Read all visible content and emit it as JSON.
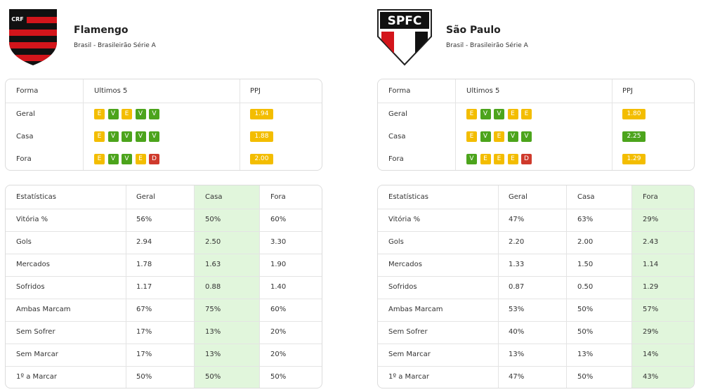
{
  "teams": [
    {
      "name": "Flamengo",
      "subtitle": "Brasil - Brasileirão Série A",
      "logo_text": "CRF",
      "form": {
        "headers": [
          "Forma",
          "Ultimos 5",
          "PPJ"
        ],
        "rows": [
          {
            "label": "Geral",
            "results": [
              "E",
              "V",
              "E",
              "V",
              "V"
            ],
            "ppj": "1.94",
            "ppj_color": "#f3bd00"
          },
          {
            "label": "Casa",
            "results": [
              "E",
              "V",
              "V",
              "V",
              "V"
            ],
            "ppj": "1.88",
            "ppj_color": "#f3bd00"
          },
          {
            "label": "Fora",
            "results": [
              "E",
              "V",
              "V",
              "E",
              "D"
            ],
            "ppj": "2.00",
            "ppj_color": "#f3bd00"
          }
        ]
      },
      "stats": {
        "headers": [
          "Estatísticas",
          "Geral",
          "Casa",
          "Fora"
        ],
        "highlight": 2,
        "rows": [
          {
            "label": "Vitória %",
            "values": [
              "56%",
              "50%",
              "60%"
            ]
          },
          {
            "label": "Gols",
            "values": [
              "2.94",
              "2.50",
              "3.30"
            ]
          },
          {
            "label": "Mercados",
            "values": [
              "1.78",
              "1.63",
              "1.90"
            ]
          },
          {
            "label": "Sofridos",
            "values": [
              "1.17",
              "0.88",
              "1.40"
            ]
          },
          {
            "label": "Ambas Marcam",
            "values": [
              "67%",
              "75%",
              "60%"
            ]
          },
          {
            "label": "Sem Sofrer",
            "values": [
              "17%",
              "13%",
              "20%"
            ]
          },
          {
            "label": "Sem Marcar",
            "values": [
              "17%",
              "13%",
              "20%"
            ]
          },
          {
            "label": "1º a Marcar",
            "values": [
              "50%",
              "50%",
              "50%"
            ]
          }
        ]
      }
    },
    {
      "name": "São Paulo",
      "subtitle": "Brasil - Brasileirão Série A",
      "logo_text": "SPFC",
      "form": {
        "headers": [
          "Forma",
          "Ultimos 5",
          "PPJ"
        ],
        "rows": [
          {
            "label": "Geral",
            "results": [
              "E",
              "V",
              "V",
              "E",
              "E"
            ],
            "ppj": "1.80",
            "ppj_color": "#f3bd00"
          },
          {
            "label": "Casa",
            "results": [
              "E",
              "V",
              "E",
              "V",
              "V"
            ],
            "ppj": "2.25",
            "ppj_color": "#4ca41c"
          },
          {
            "label": "Fora",
            "results": [
              "V",
              "E",
              "E",
              "E",
              "D"
            ],
            "ppj": "1.29",
            "ppj_color": "#f3bd00"
          }
        ]
      },
      "stats": {
        "headers": [
          "Estatísticas",
          "Geral",
          "Casa",
          "Fora"
        ],
        "highlight": 3,
        "rows": [
          {
            "label": "Vitória %",
            "values": [
              "47%",
              "63%",
              "29%"
            ]
          },
          {
            "label": "Gols",
            "values": [
              "2.20",
              "2.00",
              "2.43"
            ]
          },
          {
            "label": "Mercados",
            "values": [
              "1.33",
              "1.50",
              "1.14"
            ]
          },
          {
            "label": "Sofridos",
            "values": [
              "0.87",
              "0.50",
              "1.29"
            ]
          },
          {
            "label": "Ambas Marcam",
            "values": [
              "53%",
              "50%",
              "57%"
            ]
          },
          {
            "label": "Sem Sofrer",
            "values": [
              "40%",
              "50%",
              "29%"
            ]
          },
          {
            "label": "Sem Marcar",
            "values": [
              "13%",
              "13%",
              "14%"
            ]
          },
          {
            "label": "1º a Marcar",
            "values": [
              "47%",
              "50%",
              "43%"
            ]
          }
        ]
      }
    }
  ]
}
